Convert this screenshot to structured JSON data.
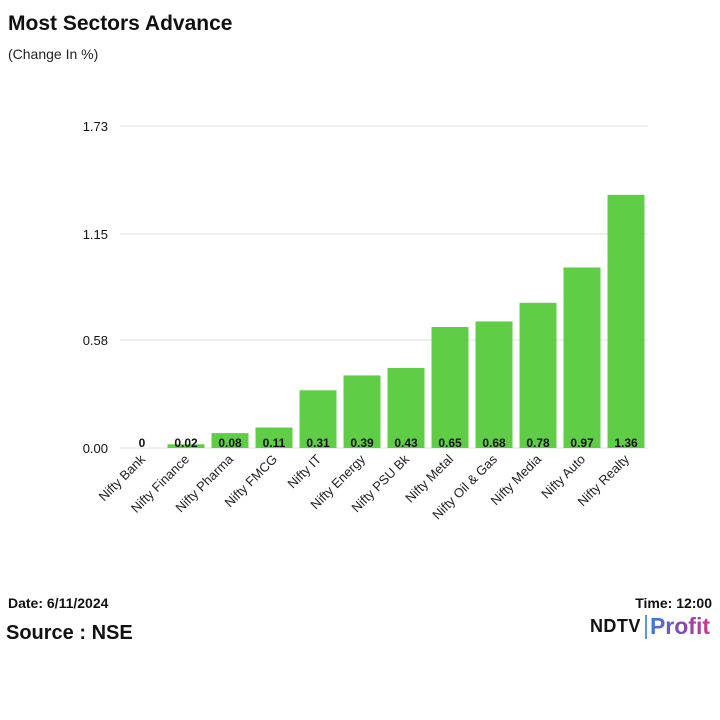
{
  "header": {
    "title": "Most Sectors Advance",
    "subtitle": "(Change In %)"
  },
  "footer": {
    "date": "Date: 6/11/2024",
    "time": "Time: 12:00",
    "source": "Source : NSE",
    "logo_ndtv": "NDTV",
    "logo_profit": "Profit"
  },
  "colors": {
    "bar": "#5fcd45",
    "grid": "#e0e0e0",
    "text": "#111111"
  },
  "chart_data": {
    "type": "bar",
    "title": "Most Sectors Advance",
    "subtitle": "(Change In %)",
    "xlabel": "",
    "ylabel": "",
    "categories": [
      "Nifty Bank",
      "Nifty Finance",
      "Nifty Pharma",
      "Nifty FMCG",
      "Nifty IT",
      "Nifty Energy",
      "Nifty PSU Bk",
      "Nifty Metal",
      "Nifty Oil & Gas",
      "Nifty Media",
      "Nifty Auto",
      "Nifty Realty"
    ],
    "values": [
      0,
      0.02,
      0.08,
      0.11,
      0.31,
      0.39,
      0.43,
      0.65,
      0.68,
      0.78,
      0.97,
      1.36
    ],
    "value_labels": [
      "0",
      "0.02",
      "0.08",
      "0.11",
      "0.31",
      "0.39",
      "0.43",
      "0.65",
      "0.68",
      "0.78",
      "0.97",
      "1.36"
    ],
    "yticks": [
      0.0,
      0.58,
      1.15,
      1.73
    ],
    "ytick_labels": [
      "0.00",
      "0.58",
      "1.15",
      "1.73"
    ],
    "ylim": [
      0,
      1.73
    ],
    "grid": true,
    "legend": "none"
  }
}
